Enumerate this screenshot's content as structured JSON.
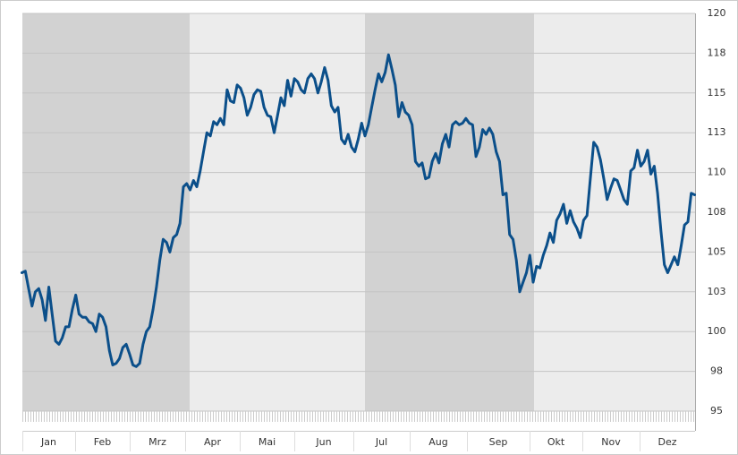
{
  "chart_data": {
    "type": "line",
    "months": [
      "Jan",
      "Feb",
      "Mrz",
      "Apr",
      "Mai",
      "Jun",
      "Jul",
      "Aug",
      "Sep",
      "Okt",
      "Nov",
      "Dez"
    ],
    "series": [
      {
        "color": "#0b4f8a",
        "values": [
          103.7,
          103.8,
          102.7,
          101.6,
          102.5,
          102.7,
          102.0,
          100.7,
          102.8,
          101.1,
          99.4,
          99.2,
          99.6,
          100.3,
          100.3,
          101.4,
          102.3,
          101.1,
          100.9,
          100.9,
          100.6,
          100.5,
          100.0,
          101.1,
          100.9,
          100.3,
          98.8,
          97.9,
          98.0,
          98.3,
          99.0,
          99.2,
          98.6,
          97.9,
          97.8,
          98.0,
          99.2,
          100.0,
          100.3,
          101.4,
          102.8,
          104.5,
          105.8,
          105.6,
          105.0,
          105.9,
          106.1,
          106.8,
          109.1,
          109.3,
          108.9,
          109.5,
          109.1,
          110.1,
          111.3,
          112.5,
          112.3,
          113.2,
          113.0,
          113.4,
          113.0,
          115.2,
          114.5,
          114.4,
          115.5,
          115.3,
          114.7,
          113.6,
          114.1,
          114.9,
          115.2,
          115.1,
          114.1,
          113.6,
          113.5,
          112.5,
          113.6,
          114.7,
          114.2,
          115.8,
          114.8,
          115.9,
          115.7,
          115.2,
          115.0,
          115.9,
          116.2,
          115.9,
          115.0,
          115.7,
          116.6,
          115.8,
          114.2,
          113.8,
          114.1,
          112.1,
          111.8,
          112.4,
          111.6,
          111.3,
          112.1,
          113.1,
          112.3,
          113.0,
          114.1,
          115.2,
          116.2,
          115.7,
          116.3,
          117.4,
          116.5,
          115.5,
          113.5,
          114.4,
          113.8,
          113.6,
          113.0,
          110.7,
          110.4,
          110.6,
          109.6,
          109.7,
          110.7,
          111.2,
          110.6,
          111.8,
          112.4,
          111.6,
          113.0,
          113.2,
          113.0,
          113.1,
          113.4,
          113.1,
          113.0,
          111.0,
          111.6,
          112.7,
          112.4,
          112.8,
          112.4,
          111.3,
          110.7,
          108.6,
          108.7,
          106.1,
          105.8,
          104.5,
          102.5,
          103.1,
          103.7,
          104.8,
          103.1,
          104.1,
          104.0,
          104.8,
          105.4,
          106.2,
          105.6,
          107.0,
          107.4,
          108.0,
          106.8,
          107.6,
          106.9,
          106.5,
          105.9,
          107.0,
          107.3,
          109.6,
          111.9,
          111.6,
          110.8,
          109.6,
          108.3,
          109.0,
          109.6,
          109.5,
          108.9,
          108.3,
          108.0,
          110.1,
          110.3,
          111.4,
          110.4,
          110.7,
          111.4,
          109.9,
          110.4,
          108.7,
          106.3,
          104.2,
          103.7,
          104.2,
          104.7,
          104.2,
          105.4,
          106.7,
          106.9,
          108.7,
          108.6
        ]
      }
    ],
    "ylim": [
      95,
      120
    ],
    "yticks": [
      95,
      {
        "value": 97.5,
        "label": "98"
      },
      100,
      {
        "value": 102.5,
        "label": "103"
      },
      105,
      {
        "value": 107.5,
        "label": "108"
      },
      110,
      {
        "value": 112.5,
        "label": "113"
      },
      115,
      {
        "value": 117.5,
        "label": "118"
      },
      120
    ],
    "grid": true
  }
}
